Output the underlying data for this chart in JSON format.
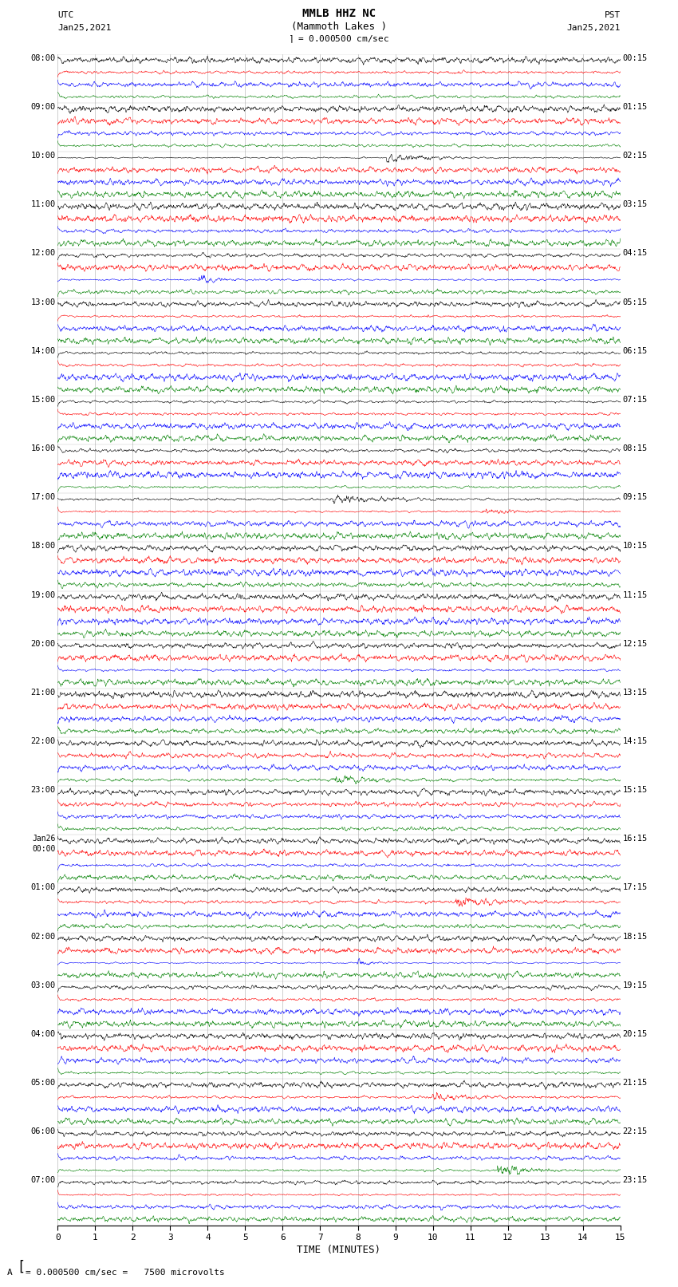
{
  "title_line1": "MMLB HHZ NC",
  "title_line2": "(Mammoth Lakes )",
  "scale_label": "= 0.000500 cm/sec",
  "footer_label": "= 0.000500 cm/sec =   7500 microvolts",
  "utc_label": "UTC",
  "utc_date": "Jan25,2021",
  "pst_label": "PST",
  "pst_date": "Jan25,2021",
  "xlabel": "TIME (MINUTES)",
  "bg_color": "#ffffff",
  "plot_bg": "#ffffff",
  "trace_colors": [
    "black",
    "red",
    "blue",
    "green"
  ],
  "grid_color": "#888888",
  "left_times_utc": [
    "08:00",
    "09:00",
    "10:00",
    "11:00",
    "12:00",
    "13:00",
    "14:00",
    "15:00",
    "16:00",
    "17:00",
    "18:00",
    "19:00",
    "20:00",
    "21:00",
    "22:00",
    "23:00",
    "Jan26\n00:00",
    "01:00",
    "02:00",
    "03:00",
    "04:00",
    "05:00",
    "06:00",
    "07:00"
  ],
  "right_times_pst": [
    "00:15",
    "01:15",
    "02:15",
    "03:15",
    "04:15",
    "05:15",
    "06:15",
    "07:15",
    "08:15",
    "09:15",
    "10:15",
    "11:15",
    "12:15",
    "13:15",
    "14:15",
    "15:15",
    "16:15",
    "17:15",
    "18:15",
    "19:15",
    "20:15",
    "21:15",
    "22:15",
    "23:15"
  ],
  "n_rows": 24,
  "traces_per_row": 4,
  "minutes": 15,
  "figsize": [
    8.5,
    16.13
  ],
  "dpi": 100
}
